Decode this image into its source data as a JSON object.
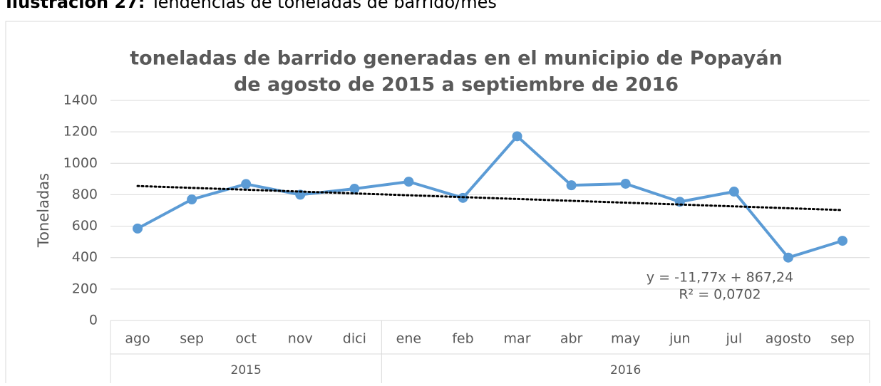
{
  "caption": {
    "number": "Ilustración 27:",
    "text": "Tendencias de toneladas de barrido/mes"
  },
  "chart_data": {
    "type": "line",
    "title": [
      "toneladas de barrido generadas en el municipio de Popayán",
      "de agosto de 2015 a  septiembre de 2016"
    ],
    "y_label": "Toneladas",
    "categories": [
      "ago",
      "sep",
      "oct",
      "nov",
      "dici",
      "ene",
      "feb",
      "mar",
      "abr",
      "may",
      "jun",
      "jul",
      "agosto",
      "sep"
    ],
    "groups": [
      {
        "label": "2015",
        "count": 5
      },
      {
        "label": "2016",
        "count": 9
      }
    ],
    "series": [
      {
        "name": "Toneladas",
        "color": "#5b9bd5",
        "values": [
          585,
          770,
          868,
          800,
          838,
          883,
          780,
          1172,
          860,
          870,
          755,
          820,
          400,
          507
        ]
      }
    ],
    "trendline": {
      "slope": -11.77,
      "intercept": 867.24,
      "r2": 0.0702,
      "label": "y = -11,77x + 867,24",
      "r2_label": "R² = 0,0702",
      "color": "#000000"
    },
    "ylim": [
      0,
      1400
    ],
    "yticks": [
      0,
      200,
      400,
      600,
      800,
      1000,
      1200,
      1400
    ],
    "grid": true
  }
}
